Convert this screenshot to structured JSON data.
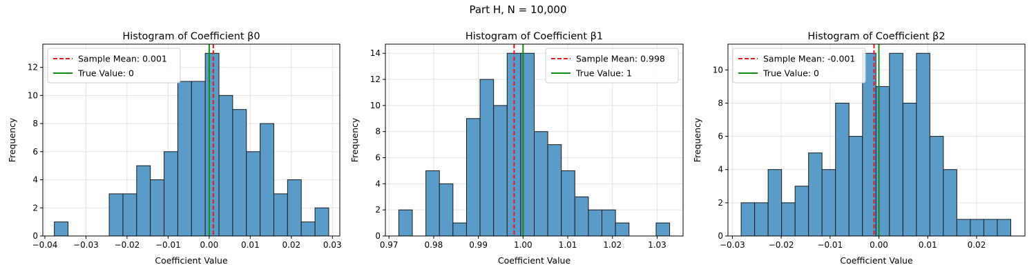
{
  "figure": {
    "suptitle": "Part H, N = 10,000"
  },
  "chart_data": [
    {
      "type": "bar",
      "title": "Histogram of Coefficient β0",
      "xlabel": "Coefficient Value",
      "ylabel": "Frequency",
      "xlim": [
        -0.0405,
        0.0318
      ],
      "ylim": [
        0,
        13.65
      ],
      "xticks": [
        -0.04,
        -0.03,
        -0.02,
        -0.01,
        0.0,
        0.01,
        0.02,
        0.03
      ],
      "xtick_labels": [
        "−0.04",
        "−0.03",
        "−0.02",
        "−0.01",
        "0.00",
        "0.01",
        "0.02",
        "0.03"
      ],
      "yticks": [
        0,
        2,
        4,
        6,
        8,
        10,
        12
      ],
      "ytick_labels": [
        "0",
        "2",
        "4",
        "6",
        "8",
        "10",
        "12"
      ],
      "bin_start": -0.0377,
      "bin_width": 0.00334,
      "counts": [
        1,
        0,
        0,
        0,
        3,
        3,
        5,
        4,
        6,
        11,
        11,
        13,
        10,
        9,
        6,
        8,
        3,
        4,
        1,
        2
      ],
      "sample_mean": 0.001,
      "true_value": 0,
      "grid": true,
      "legend_position": "top-left",
      "legend": [
        "Sample Mean: 0.001",
        "True Value: 0"
      ]
    },
    {
      "type": "bar",
      "title": "Histogram of Coefficient β1",
      "xlabel": "Coefficient Value",
      "ylabel": "Frequency",
      "xlim": [
        0.9692,
        1.0358
      ],
      "ylim": [
        0,
        14.7
      ],
      "xticks": [
        0.97,
        0.98,
        0.99,
        1.0,
        1.01,
        1.02,
        1.03
      ],
      "xtick_labels": [
        "0.97",
        "0.98",
        "0.99",
        "1.00",
        "1.01",
        "1.02",
        "1.03"
      ],
      "yticks": [
        0,
        2,
        4,
        6,
        8,
        10,
        12,
        14
      ],
      "ytick_labels": [
        "0",
        "2",
        "4",
        "6",
        "8",
        "10",
        "12",
        "14"
      ],
      "bin_start": 0.9722,
      "bin_width": 0.00303,
      "counts": [
        2,
        0,
        5,
        4,
        1,
        9,
        12,
        10,
        14,
        14,
        8,
        7,
        5,
        3,
        2,
        2,
        1,
        0,
        0,
        1
      ],
      "sample_mean": 0.998,
      "true_value": 1,
      "grid": true,
      "legend_position": "top-right",
      "legend": [
        "Sample Mean: 0.998",
        "True Value: 1"
      ]
    },
    {
      "type": "bar",
      "title": "Histogram of Coefficient β2",
      "xlabel": "Coefficient Value",
      "ylabel": "Frequency",
      "xlim": [
        -0.0309,
        0.0299
      ],
      "ylim": [
        0,
        11.55
      ],
      "xticks": [
        -0.03,
        -0.02,
        -0.01,
        0.0,
        0.01,
        0.02
      ],
      "xtick_labels": [
        "−0.03",
        "−0.02",
        "−0.01",
        "0.00",
        "0.01",
        "0.02"
      ],
      "yticks": [
        0,
        2,
        4,
        6,
        8,
        10
      ],
      "ytick_labels": [
        "0",
        "2",
        "4",
        "6",
        "8",
        "10"
      ],
      "bin_start": -0.0282,
      "bin_width": 0.00276,
      "counts": [
        2,
        2,
        4,
        2,
        3,
        5,
        4,
        8,
        6,
        11,
        9,
        11,
        8,
        11,
        6,
        4,
        1,
        1,
        1,
        1
      ],
      "sample_mean": -0.001,
      "true_value": 0,
      "grid": true,
      "legend_position": "top-left",
      "legend": [
        "Sample Mean: -0.001",
        "True Value: 0"
      ]
    }
  ],
  "colors": {
    "bar_fill": "#5b9bc8",
    "bar_edge": "#1a1a1a",
    "mean_line": "#e41a1c",
    "true_line": "#138a13",
    "grid": "#e3e3e3"
  }
}
